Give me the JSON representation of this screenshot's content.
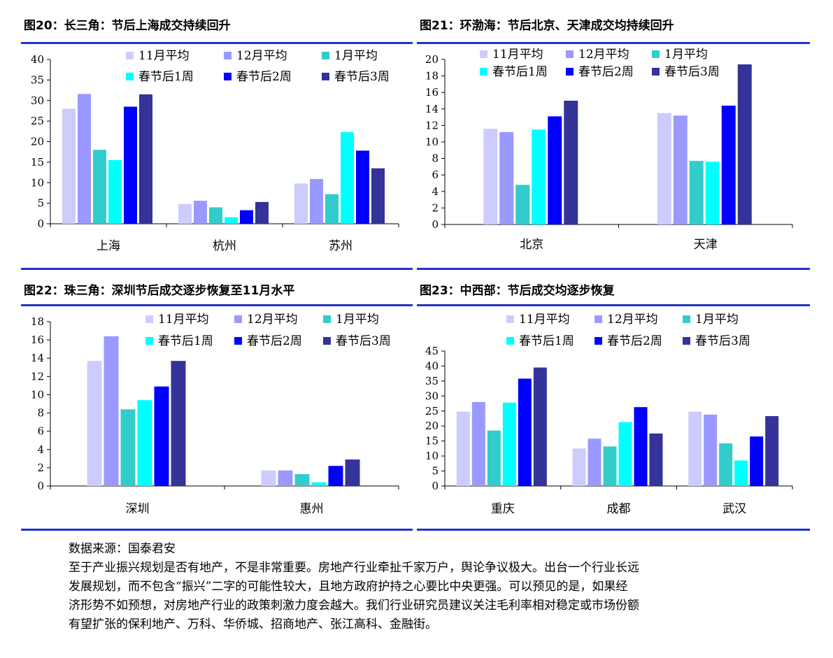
{
  "legend_colors": [
    "#ccccff",
    "#9999ff",
    "#33cccc",
    "#00ffff",
    "#0000ff",
    "#333399"
  ],
  "panels": [
    {
      "title": "图20：长三角：节后上海成交持续回升",
      "chart_data": {
        "type": "bar",
        "categories": [
          "上海",
          "杭州",
          "苏州"
        ],
        "series": [
          {
            "name": "11月平均",
            "values": [
              28,
              4.8,
              9.8
            ]
          },
          {
            "name": "12月平均",
            "values": [
              31.6,
              5.6,
              10.9
            ]
          },
          {
            "name": "1月平均",
            "values": [
              18,
              4,
              7.2
            ]
          },
          {
            "name": "春节后1周",
            "values": [
              15.5,
              1.6,
              22.3
            ]
          },
          {
            "name": "春节后2周",
            "values": [
              28.5,
              3.3,
              17.8
            ]
          },
          {
            "name": "春节后3周",
            "values": [
              31.5,
              5.3,
              13.5
            ]
          }
        ],
        "ylim": [
          0,
          40
        ],
        "yticks": [
          0,
          5,
          10,
          15,
          20,
          25,
          30,
          35,
          40
        ]
      }
    },
    {
      "title": "图21：环渤海：节后北京、天津成交均持续回升",
      "chart_data": {
        "type": "bar",
        "categories": [
          "北京",
          "天津"
        ],
        "series": [
          {
            "name": "11月平均",
            "values": [
              11.6,
              13.5
            ]
          },
          {
            "name": "12月平均",
            "values": [
              11.2,
              13.2
            ]
          },
          {
            "name": "1月平均",
            "values": [
              4.8,
              7.7
            ]
          },
          {
            "name": "春节后1周",
            "values": [
              11.5,
              7.6
            ]
          },
          {
            "name": "春节后2周",
            "values": [
              13.1,
              14.4
            ]
          },
          {
            "name": "春节后3周",
            "values": [
              15,
              19.4
            ]
          }
        ],
        "ylim": [
          0,
          20
        ],
        "yticks": [
          0,
          2,
          4,
          6,
          8,
          10,
          12,
          14,
          16,
          18,
          20
        ]
      }
    },
    {
      "title": "图22：珠三角：深圳节后成交逐步恢复至11月水平",
      "chart_data": {
        "type": "bar",
        "categories": [
          "深圳",
          "惠州"
        ],
        "series": [
          {
            "name": "11月平均",
            "values": [
              13.7,
              1.7
            ]
          },
          {
            "name": "12月平均",
            "values": [
              16.4,
              1.7
            ]
          },
          {
            "name": "1月平均",
            "values": [
              8.4,
              1.3
            ]
          },
          {
            "name": "春节后1周",
            "values": [
              9.4,
              0.4
            ]
          },
          {
            "name": "春节后2周",
            "values": [
              10.9,
              2.2
            ]
          },
          {
            "name": "春节后3周",
            "values": [
              13.7,
              2.9
            ]
          }
        ],
        "ylim": [
          0,
          18
        ],
        "yticks": [
          0,
          2,
          4,
          6,
          8,
          10,
          12,
          14,
          16,
          18
        ]
      }
    },
    {
      "title": "图23：中西部：节后成交均逐步恢复",
      "chart_data": {
        "type": "bar",
        "categories": [
          "重庆",
          "成都",
          "武汉"
        ],
        "series": [
          {
            "name": "11月平均",
            "values": [
              24.8,
              12.5,
              24.8
            ]
          },
          {
            "name": "12月平均",
            "values": [
              28,
              15.8,
              23.8
            ]
          },
          {
            "name": "1月平均",
            "values": [
              18.5,
              13.2,
              14.2
            ]
          },
          {
            "name": "春节后1周",
            "values": [
              27.8,
              21.3,
              8.5
            ]
          },
          {
            "name": "春节后2周",
            "values": [
              35.8,
              26.3,
              16.5
            ]
          },
          {
            "name": "春节后3周",
            "values": [
              39.5,
              17.5,
              23.3
            ]
          }
        ],
        "ylim": [
          0,
          45
        ],
        "yticks": [
          0,
          5,
          10,
          15,
          20,
          25,
          30,
          35,
          40,
          45
        ]
      }
    }
  ],
  "footer": {
    "source": "数据来源：国泰君安",
    "paragraph_lines": [
      "至于产业振兴规划是否有地产，不是非常重要。房地产行业牵扯千家万户，舆论争议极大。出台一个行业长远",
      "发展规划，而不包含“振兴”二字的可能性较大，且地方政府护持之心要比中央更强。可以预见的是，如果经",
      "济形势不如预想，对房地产行业的政策刺激力度会越大。我们行业研究员建议关注毛利率相对稳定或市场份额",
      "有望扩张的保利地产、万科、华侨城、招商地产、张江高科、金融街。"
    ]
  }
}
